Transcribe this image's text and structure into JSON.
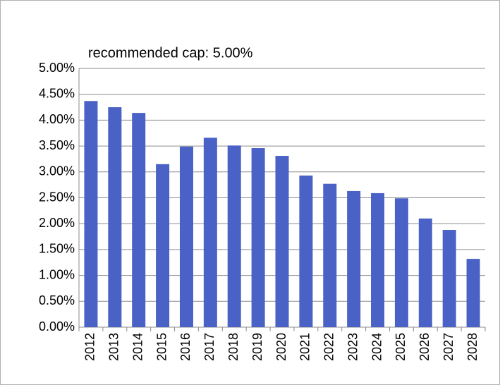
{
  "chart_data": {
    "type": "bar",
    "annotation": "recommended cap: 5.00%",
    "categories": [
      "2012",
      "2013",
      "2014",
      "2015",
      "2016",
      "2017",
      "2018",
      "2019",
      "2020",
      "2021",
      "2022",
      "2023",
      "2024",
      "2025",
      "2026",
      "2027",
      "2028"
    ],
    "values": [
      4.37,
      4.25,
      4.14,
      3.15,
      3.49,
      3.66,
      3.51,
      3.46,
      3.31,
      2.93,
      2.77,
      2.63,
      2.59,
      2.49,
      2.1,
      1.88,
      1.32
    ],
    "color": "#4a62c6",
    "ylim": [
      0,
      5
    ],
    "yticks": [
      {
        "value": 0,
        "label": "0.00%"
      },
      {
        "value": 0.5,
        "label": "0.50%"
      },
      {
        "value": 1,
        "label": "1.00%"
      },
      {
        "value": 1.5,
        "label": "1.50%"
      },
      {
        "value": 2,
        "label": "2.00%"
      },
      {
        "value": 2.5,
        "label": "2.50%"
      },
      {
        "value": 3,
        "label": "3.00%"
      },
      {
        "value": 3.5,
        "label": "3.50%"
      },
      {
        "value": 4,
        "label": "4.00%"
      },
      {
        "value": 4.5,
        "label": "4.50%"
      },
      {
        "value": 5,
        "label": "5.00%"
      }
    ],
    "grid": true
  }
}
